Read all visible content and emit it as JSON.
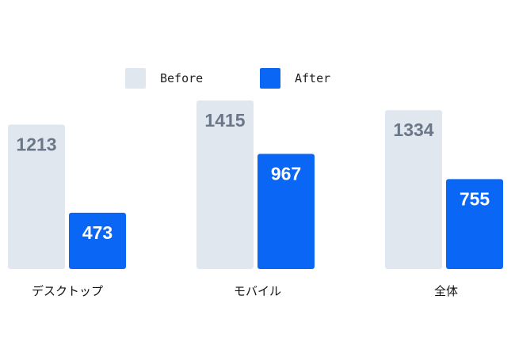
{
  "chart_data": {
    "type": "bar",
    "categories": [
      "デスクトップ",
      "モバイル",
      "全体"
    ],
    "series": [
      {
        "name": "Before",
        "values": [
          1213,
          1415,
          1334
        ],
        "color": "#e1e7ef",
        "label_color": "#6b7789"
      },
      {
        "name": "After",
        "values": [
          473,
          967,
          755
        ],
        "color": "#0a66f5",
        "label_color": "#ffffff"
      }
    ],
    "ylim": [
      0,
      1500
    ],
    "grid": false,
    "legend": "top-center",
    "data_labels": true
  }
}
